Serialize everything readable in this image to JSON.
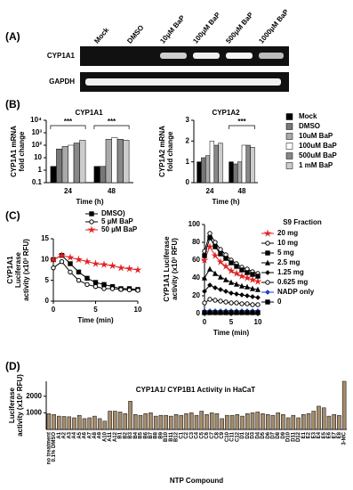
{
  "panels": [
    "(A)",
    "(B)",
    "(C)",
    "(D)"
  ],
  "gel": {
    "lanes": [
      "Mock",
      "DMSO",
      "10μM BaP",
      "100μM BaP",
      "500μM BaP",
      "1000μM BaP"
    ],
    "rows": [
      "CYP1A1",
      "GAPDH"
    ]
  },
  "chart_data": [
    {
      "type": "bar",
      "title": "CYP1A1",
      "xlabel": "Time (h)",
      "ylabel": [
        "CYP1A1 mRNA",
        "fold change"
      ],
      "log_scale": true,
      "categories": [
        "24",
        "48"
      ],
      "ylim": [
        0.1,
        10000
      ],
      "yticks": [
        0.1,
        1,
        10,
        {
          "value": 100,
          "label": "10²"
        },
        {
          "value": 1000,
          "label": "10³"
        },
        {
          "value": 10000,
          "label": "10⁴"
        }
      ],
      "series": [
        {
          "color": "#000000",
          "values": [
            2,
            2
          ]
        },
        {
          "color": "#777777",
          "values": [
            50,
            2
          ]
        },
        {
          "color": "#aaaaaa",
          "values": [
            80,
            300
          ]
        },
        {
          "color": "#ffffff",
          "values": [
            100,
            400
          ]
        },
        {
          "color": "#888888",
          "values": [
            150,
            300
          ]
        },
        {
          "color": "#cccccc",
          "values": [
            250,
            250
          ]
        }
      ],
      "annotations": [
        "***",
        "***"
      ]
    },
    {
      "type": "bar",
      "title": "CYP1A2",
      "xlabel": "Time (h)",
      "ylabel": [
        "CYP1A2 mRNA",
        "fold change"
      ],
      "log_scale": false,
      "categories": [
        "24",
        "48"
      ],
      "ylim": [
        0,
        3
      ],
      "yticks": [
        0,
        1,
        2,
        3
      ],
      "legend": "right",
      "series": [
        {
          "name": "Mock",
          "color": "#000000",
          "values": [
            1.0,
            1.0
          ]
        },
        {
          "name": "DMSO",
          "color": "#777777",
          "values": [
            1.2,
            0.9
          ]
        },
        {
          "name": "10uM BaP",
          "color": "#aaaaaa",
          "values": [
            1.3,
            1.0
          ]
        },
        {
          "name": "100uM BaP",
          "color": "#ffffff",
          "values": [
            2.0,
            1.8
          ]
        },
        {
          "name": "500uM BaP",
          "color": "#888888",
          "values": [
            1.8,
            1.8
          ]
        },
        {
          "name": "1 mM BaP",
          "color": "#cccccc",
          "values": [
            1.9,
            1.7
          ]
        }
      ],
      "annotations": [
        "***"
      ]
    },
    {
      "type": "line",
      "xlabel": "Time (min)",
      "ylabel": [
        "CYP1A1",
        "Luciferase",
        "activity (x10³ RFU)"
      ],
      "legend": "top",
      "x": [
        0,
        1,
        2,
        3,
        4,
        5,
        6,
        7,
        8,
        9,
        10
      ],
      "xlim": [
        0,
        10
      ],
      "xticks": [
        0,
        5,
        10
      ],
      "ylim": [
        0,
        15
      ],
      "yticks": [
        0,
        5,
        10,
        15
      ],
      "series": [
        {
          "name": "DMSO)",
          "color": "#000000",
          "marker": "square",
          "values": [
            10,
            11,
            9,
            7,
            5.5,
            4.5,
            4,
            3.5,
            3,
            3,
            2.8
          ]
        },
        {
          "name": "5 µM BaP",
          "color": "#000000",
          "marker": "circle",
          "values": [
            8,
            9.5,
            7,
            5,
            4,
            3.5,
            3,
            3,
            2.8,
            2.7,
            2.6
          ]
        },
        {
          "name": "50 µM BaP",
          "color": "#e02020",
          "marker": "star",
          "values": [
            10,
            11,
            10.5,
            10,
            9.5,
            9,
            8.8,
            8.5,
            8,
            7.8,
            7.5
          ]
        }
      ]
    },
    {
      "type": "line",
      "title": "S9 Fraction",
      "xlabel": "Time (min)",
      "ylabel": [
        "CYP1A1 Luciferase",
        "activity (x10³ RFU)"
      ],
      "legend": "right",
      "x": [
        0,
        1,
        2,
        3,
        4,
        5,
        6,
        7,
        8,
        9,
        10
      ],
      "xlim": [
        0,
        10
      ],
      "xticks": [
        0,
        5,
        10
      ],
      "ylim": [
        0,
        100
      ],
      "yticks": [
        0,
        20,
        40,
        60,
        80,
        100
      ],
      "series": [
        {
          "name": "20 mg",
          "color": "#e02020",
          "marker": "star",
          "values": [
            60,
            75,
            65,
            58,
            53,
            48,
            45,
            42,
            40,
            38,
            36
          ]
        },
        {
          "name": "10 mg",
          "color": "#000000",
          "marker": "circle",
          "values": [
            70,
            90,
            80,
            72,
            66,
            60,
            56,
            52,
            50,
            47,
            45
          ]
        },
        {
          "name": "5 mg",
          "color": "#000000",
          "marker": "square",
          "values": [
            65,
            85,
            75,
            67,
            62,
            57,
            53,
            49,
            46,
            44,
            42
          ]
        },
        {
          "name": "2.5 mg",
          "color": "#000000",
          "marker": "triangle",
          "values": [
            40,
            50,
            45,
            41,
            38,
            35,
            33,
            31,
            30,
            28,
            27
          ]
        },
        {
          "name": "1.25 mg",
          "color": "#000000",
          "marker": "diamond",
          "values": [
            25,
            32,
            29,
            27,
            25,
            23,
            22,
            21,
            20,
            19,
            18
          ]
        },
        {
          "name": "0.625 mg",
          "color": "#000000",
          "marker": "circle",
          "values": [
            12,
            16,
            15,
            14,
            13,
            12,
            12,
            11,
            11,
            10,
            10
          ]
        },
        {
          "name": "NADP only",
          "color": "#1a3fd0",
          "marker": "diamond",
          "values": [
            3,
            3,
            3,
            3,
            3,
            3,
            3,
            3,
            3,
            3,
            3
          ]
        },
        {
          "name": "0",
          "color": "#000000",
          "marker": "square",
          "values": [
            1,
            1,
            1,
            1,
            1,
            1,
            1,
            1,
            1,
            1,
            1
          ]
        }
      ]
    },
    {
      "type": "bar",
      "title": "CYP1A1/ CYP1B1 Activity in HaCaT",
      "xlabel": "NTP Compound",
      "ylabel": [
        "Luciferase",
        "activity (x10³ RFU)"
      ],
      "log_scale": false,
      "color": "#a48c6c",
      "ylim": [
        0,
        2900
      ],
      "yticks": [
        1000,
        2000
      ],
      "categories": [
        "no treatment",
        "0.1% DMSO",
        "A1",
        "A2",
        "A3",
        "A4",
        "A5",
        "A6",
        "A7",
        "A8",
        "A9",
        "A10",
        "A11",
        "A12",
        "B1",
        "B2",
        "B3",
        "B4",
        "B5",
        "B6",
        "B7",
        "B8",
        "B9",
        "B10",
        "B11",
        "B12",
        "C1",
        "C2",
        "C3",
        "C4",
        "C5",
        "C6",
        "C7",
        "C8",
        "C9",
        "C10",
        "C11",
        "C12",
        "D1",
        "D2",
        "D3",
        "D4",
        "D5",
        "D6",
        "D7",
        "D8",
        "D9",
        "D10",
        "D11",
        "D12",
        "E1",
        "E2",
        "E3",
        "E4",
        "E5",
        "E6",
        "E7",
        "E8",
        "3-MC"
      ],
      "values": [
        950,
        900,
        800,
        780,
        760,
        700,
        850,
        650,
        700,
        800,
        650,
        500,
        1100,
        1100,
        1050,
        950,
        1700,
        900,
        850,
        950,
        1000,
        800,
        850,
        850,
        800,
        900,
        850,
        950,
        1000,
        850,
        1100,
        900,
        1000,
        950,
        650,
        850,
        850,
        900,
        800,
        950,
        1000,
        1050,
        950,
        900,
        850,
        1000,
        900,
        700,
        850,
        700,
        900,
        950,
        1100,
        1400,
        1300,
        800,
        900,
        850,
        2900
      ]
    }
  ]
}
